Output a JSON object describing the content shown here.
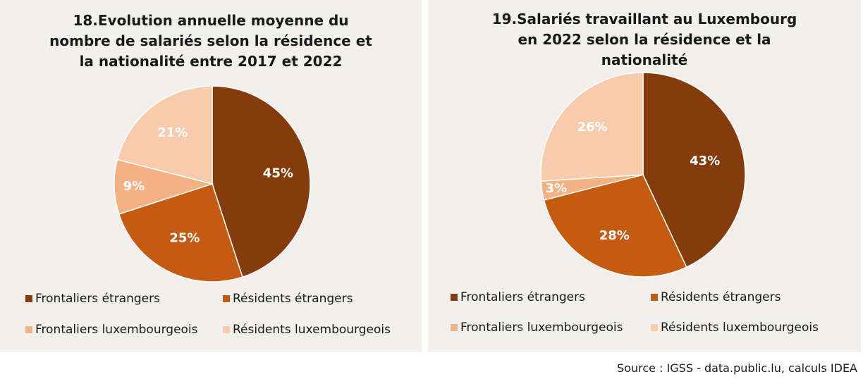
{
  "chart_data": [
    {
      "type": "pie",
      "title_lines": [
        "18.Evolution annuelle moyenne du",
        "nombre de salariés selon la résidence et",
        "la nationalité entre 2017 et 2022"
      ],
      "categories": [
        "Frontaliers étrangers",
        "Résidents étrangers",
        "Frontaliers luxembourgeois",
        "Résidents luxembourgeois"
      ],
      "values": [
        45,
        25,
        9,
        21
      ],
      "labels": [
        "45%",
        "25%",
        "9%",
        "21%"
      ],
      "colors": [
        "#843c0c",
        "#c55a11",
        "#f4b183",
        "#f8cbad"
      ],
      "label_colors": [
        "#ffffff",
        "#ffffff",
        "#ffffff",
        "#ffffff"
      ],
      "legend_position": "bottom"
    },
    {
      "type": "pie",
      "title_lines": [
        "19.Salariés travaillant au Luxembourg",
        "en 2022 selon la résidence et la",
        "nationalité"
      ],
      "categories": [
        "Frontaliers étrangers",
        "Résidents étrangers",
        "Frontaliers luxembourgeois",
        "Résidents luxembourgeois"
      ],
      "values": [
        43,
        28,
        3,
        26
      ],
      "labels": [
        "43%",
        "28%",
        "3%",
        "26%"
      ],
      "colors": [
        "#843c0c",
        "#c55a11",
        "#f4b183",
        "#f8cbad"
      ],
      "label_colors": [
        "#ffffff",
        "#ffffff",
        "#ffffff",
        "#ffffff"
      ],
      "legend_position": "bottom"
    }
  ],
  "source": "Source : IGSS - data.public.lu, calculs IDEA"
}
